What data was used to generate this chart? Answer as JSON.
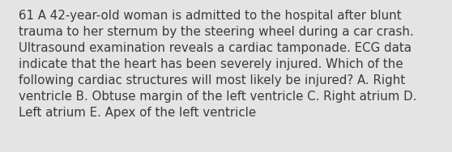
{
  "lines": [
    "61 A 42-year-old woman is admitted to the hospital after blunt",
    "trauma to her sternum by the steering wheel during a car crash.",
    "Ultrasound examination reveals a cardiac tamponade. ECG data",
    "indicate that the heart has been severely injured. Which of the",
    "following cardiac structures will most likely be injured? A. Right",
    "ventricle B. Obtuse margin of the left ventricle C. Right atrium D.",
    "Left atrium E. Apex of the left ventricle"
  ],
  "background_color": "#e4e4e4",
  "text_color": "#3a3a3a",
  "font_size": 10.8,
  "fig_width": 5.58,
  "fig_height": 1.88,
  "dpi": 100
}
